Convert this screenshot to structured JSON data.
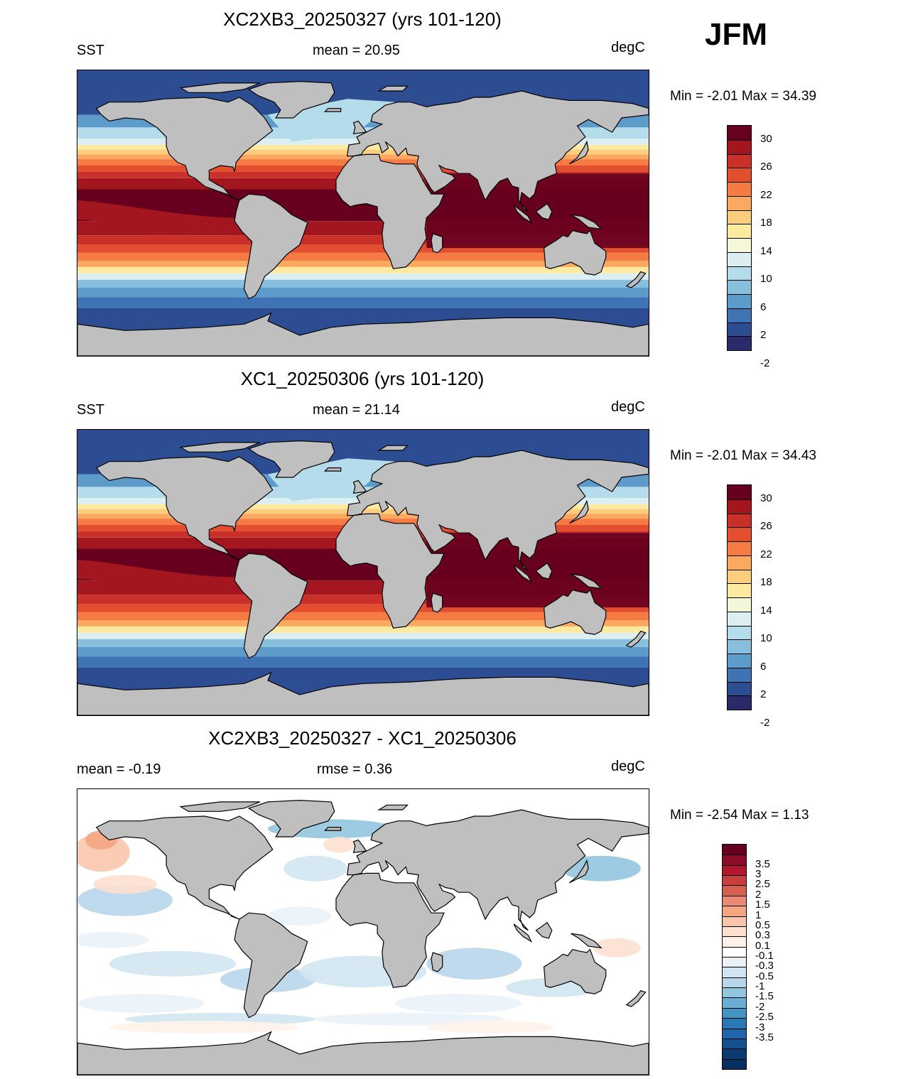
{
  "season": "JFM",
  "panels": [
    {
      "title": "XC2XB3_20250327 (yrs 101-120)",
      "left_label": "SST",
      "center_label": "mean =  20.95",
      "right_label": "degC",
      "minmax": "Min =  -2.01 Max =  34.39",
      "kind": "sst"
    },
    {
      "title": "XC1_20250306 (yrs 101-120)",
      "left_label": "SST",
      "center_label": "mean =  21.14",
      "right_label": "degC",
      "minmax": "Min =  -2.01 Max =  34.43",
      "kind": "sst"
    },
    {
      "title": "XC2XB3_20250327 - XC1_20250306",
      "left_label": "mean =  -0.19",
      "center_label": "rmse =   0.36",
      "right_label": "degC",
      "minmax": "Min =  -2.54 Max =   1.13",
      "kind": "diff"
    }
  ],
  "colorbars": {
    "sst": {
      "colors": [
        "#67001f",
        "#a3161f",
        "#c9302a",
        "#e34e2f",
        "#f57a44",
        "#fba860",
        "#fdcd7e",
        "#fdeaa0",
        "#f5f8d8",
        "#dbeff2",
        "#b5dcea",
        "#87bfdc",
        "#5d9cca",
        "#3f73b4",
        "#2c4d91",
        "#2b2a6a"
      ],
      "labels": [
        "30",
        "26",
        "22",
        "18",
        "14",
        "10",
        "6",
        "2",
        "-2"
      ]
    },
    "diff": {
      "colors": [
        "#67001f",
        "#8b0c26",
        "#b2182b",
        "#c83d3e",
        "#d6604d",
        "#e88a74",
        "#f4a582",
        "#f9c6ac",
        "#fde0d0",
        "#fff2ea",
        "#ffffff",
        "#eaf2f8",
        "#d1e5f0",
        "#b7d6ea",
        "#92c5de",
        "#6aaed6",
        "#4393c3",
        "#2b77b5",
        "#2166ac",
        "#144f8e",
        "#0a3a72",
        "#053061"
      ],
      "labels": [
        "3.5",
        "3",
        "2.5",
        "2",
        "1.5",
        "1",
        "0.5",
        "0.3",
        "0.1",
        "-0.1",
        "-0.3",
        "-0.5",
        "-1",
        "-1.5",
        "-2",
        "-2.5",
        "-3",
        "-3.5"
      ]
    }
  },
  "colors": {
    "land": "#bfbfbf",
    "coast": "#000000",
    "frame": "#000000"
  }
}
